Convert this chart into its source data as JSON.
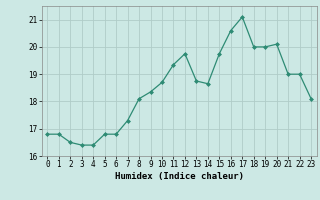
{
  "x": [
    0,
    1,
    2,
    3,
    4,
    5,
    6,
    7,
    8,
    9,
    10,
    11,
    12,
    13,
    14,
    15,
    16,
    17,
    18,
    19,
    20,
    21,
    22,
    23
  ],
  "y": [
    16.8,
    16.8,
    16.5,
    16.4,
    16.4,
    16.8,
    16.8,
    17.3,
    18.1,
    18.35,
    18.7,
    19.35,
    19.75,
    18.75,
    18.65,
    19.75,
    20.6,
    21.1,
    20.0,
    20.0,
    20.1,
    19.0,
    19.0,
    18.1
  ],
  "line_color": "#2e8b74",
  "marker": "D",
  "marker_size": 2.0,
  "bg_color": "#cce8e4",
  "grid_color": "#b0ccc8",
  "xlabel": "Humidex (Indice chaleur)",
  "ylim": [
    16.0,
    21.5
  ],
  "xlim": [
    -0.5,
    23.5
  ],
  "yticks": [
    16,
    17,
    18,
    19,
    20,
    21
  ],
  "xticks": [
    0,
    1,
    2,
    3,
    4,
    5,
    6,
    7,
    8,
    9,
    10,
    11,
    12,
    13,
    14,
    15,
    16,
    17,
    18,
    19,
    20,
    21,
    22,
    23
  ],
  "xlabel_fontsize": 6.5,
  "tick_fontsize": 5.5,
  "linewidth": 0.9
}
